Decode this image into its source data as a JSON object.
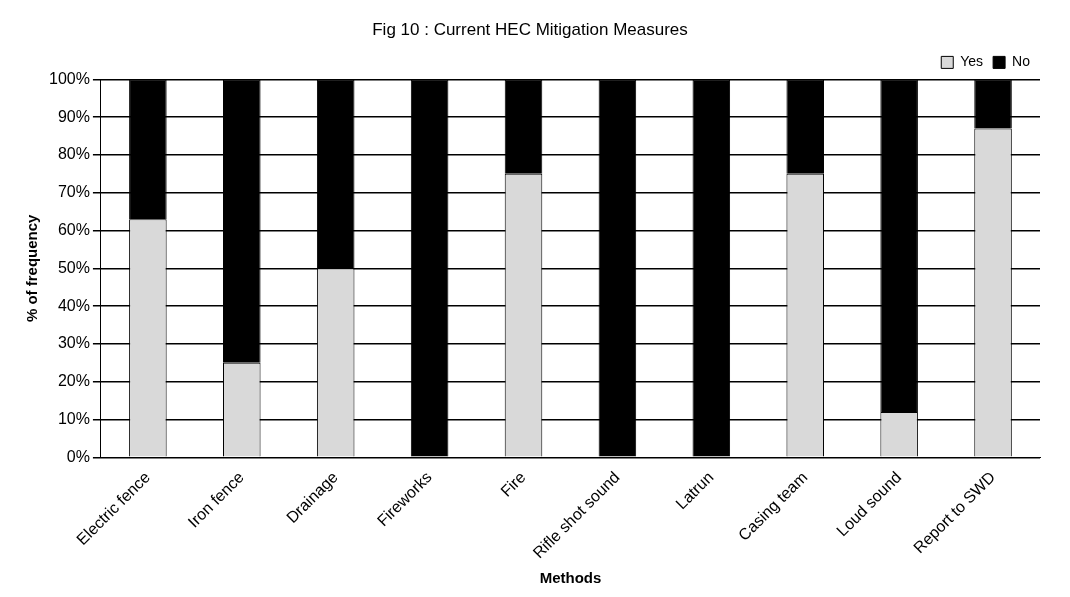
{
  "chart_data": {
    "type": "bar",
    "title": "Fig 10 : Current HEC Mitigation Measures",
    "xlabel": "Methods",
    "ylabel": "% of frequency",
    "categories": [
      "Electric fence",
      "Iron fence",
      "Drainage",
      "Fireworks",
      "Fire",
      "Rifle shot sound",
      "Latrun",
      "Casing team",
      "Loud sound",
      "Report to SWD"
    ],
    "stacked": true,
    "series": [
      {
        "name": "Yes",
        "color": "#d9d9d9",
        "values": [
          63,
          25,
          50,
          0,
          75,
          0,
          0,
          75,
          12,
          87
        ]
      },
      {
        "name": "No",
        "color": "#000000",
        "values": [
          37,
          75,
          50,
          100,
          25,
          100,
          100,
          25,
          88,
          13
        ]
      }
    ],
    "ylim": [
      0,
      100
    ],
    "yticks": [
      {
        "value": 0,
        "label": "0%"
      },
      {
        "value": 10,
        "label": "10%"
      },
      {
        "value": 20,
        "label": "20%"
      },
      {
        "value": 30,
        "label": "30%"
      },
      {
        "value": 40,
        "label": "40%"
      },
      {
        "value": 50,
        "label": "50%"
      },
      {
        "value": 60,
        "label": "60%"
      },
      {
        "value": 70,
        "label": "70%"
      },
      {
        "value": 80,
        "label": "80%"
      },
      {
        "value": 90,
        "label": "90%"
      },
      {
        "value": 100,
        "label": "100%"
      }
    ],
    "grid": "y",
    "legend": "top right"
  }
}
